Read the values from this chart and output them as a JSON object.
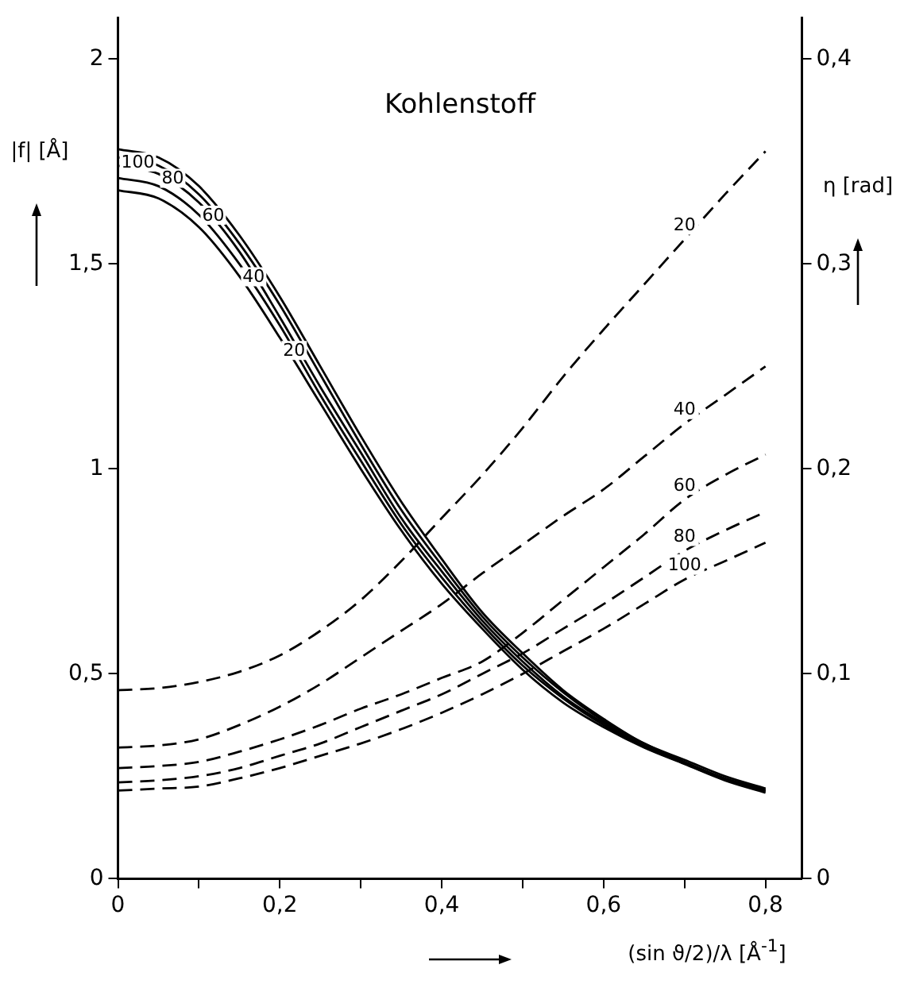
{
  "chart_data": {
    "type": "line",
    "title": "Kohlenstoff",
    "xlabel": "(sin ϑ/2)/λ [Å$^{-1}$]",
    "ylabel": "|f| [Å]",
    "y2label": "η [rad]",
    "x": [
      0,
      0.05,
      0.1,
      0.15,
      0.2,
      0.25,
      0.3,
      0.35,
      0.4,
      0.45,
      0.5,
      0.55,
      0.6,
      0.65,
      0.7,
      0.75,
      0.8
    ],
    "xlim": [
      0,
      0.845
    ],
    "xticks": [
      {
        "value": 0,
        "label": "0"
      },
      {
        "value": 0.1,
        "label": null
      },
      {
        "value": 0.2,
        "label": "0,2"
      },
      {
        "value": 0.3,
        "label": null
      },
      {
        "value": 0.4,
        "label": "0,4"
      },
      {
        "value": 0.5,
        "label": null
      },
      {
        "value": 0.6,
        "label": "0,6"
      },
      {
        "value": 0.7,
        "label": null
      },
      {
        "value": 0.8,
        "label": "0,8"
      }
    ],
    "ylim": [
      0,
      2.1
    ],
    "yticks": [
      0,
      {
        "value": 0.5,
        "label": "0,5"
      },
      1,
      {
        "value": 1.5,
        "label": "1,5"
      },
      2
    ],
    "y2lim": [
      0,
      0.42
    ],
    "y2ticks": [
      0,
      {
        "value": 0.1,
        "label": "0,1"
      },
      {
        "value": 0.2,
        "label": "0,2"
      },
      {
        "value": 0.3,
        "label": "0,3"
      },
      {
        "value": 0.4,
        "label": "0,4"
      }
    ],
    "grid": false,
    "legend": false,
    "marker": "none",
    "series": [
      {
        "name": "100",
        "color": "#000000",
        "line_style": "solid",
        "values": [
          1.78,
          1.76,
          1.69,
          1.57,
          1.42,
          1.25,
          1.08,
          0.92,
          0.78,
          0.65,
          0.55,
          0.46,
          0.39,
          0.33,
          0.29,
          0.25,
          0.22
        ]
      },
      {
        "name": "80",
        "color": "#000000",
        "line_style": "solid",
        "values": [
          1.76,
          1.74,
          1.67,
          1.55,
          1.4,
          1.23,
          1.06,
          0.9,
          0.765,
          0.64,
          0.54,
          0.455,
          0.385,
          0.33,
          0.285,
          0.245,
          0.218
        ]
      },
      {
        "name": "60",
        "color": "#000000",
        "line_style": "solid",
        "values": [
          1.74,
          1.72,
          1.65,
          1.53,
          1.37,
          1.2,
          1.04,
          0.88,
          0.75,
          0.63,
          0.53,
          0.445,
          0.38,
          0.325,
          0.283,
          0.243,
          0.215
        ]
      },
      {
        "name": "40",
        "color": "#000000",
        "line_style": "solid",
        "values": [
          1.71,
          1.69,
          1.62,
          1.5,
          1.35,
          1.18,
          1.02,
          0.865,
          0.735,
          0.62,
          0.52,
          0.44,
          0.375,
          0.322,
          0.281,
          0.242,
          0.213
        ]
      },
      {
        "name": "20",
        "color": "#000000",
        "line_style": "solid",
        "values": [
          1.68,
          1.66,
          1.59,
          1.47,
          1.32,
          1.16,
          1.0,
          0.85,
          0.72,
          0.61,
          0.51,
          0.43,
          0.37,
          0.32,
          0.28,
          0.24,
          0.21
        ]
      },
      {
        "name": "20",
        "color": "#000000",
        "line_style": "dashed",
        "axis": "y2",
        "values": [
          0.092,
          0.093,
          0.096,
          0.101,
          0.109,
          0.121,
          0.136,
          0.155,
          0.176,
          0.197,
          0.22,
          0.245,
          0.268,
          0.29,
          0.312,
          0.334,
          0.355
        ]
      },
      {
        "name": "40",
        "color": "#000000",
        "line_style": "dashed",
        "axis": "y2",
        "values": [
          0.064,
          0.065,
          0.068,
          0.075,
          0.084,
          0.095,
          0.108,
          0.121,
          0.134,
          0.149,
          0.163,
          0.177,
          0.19,
          0.206,
          0.222,
          0.236,
          0.25
        ]
      },
      {
        "name": "60",
        "color": "#000000",
        "line_style": "dashed",
        "axis": "y2",
        "values": [
          0.054,
          0.055,
          0.057,
          0.062,
          0.068,
          0.075,
          0.083,
          0.09,
          0.098,
          0.106,
          0.12,
          0.136,
          0.152,
          0.168,
          0.185,
          0.197,
          0.207
        ]
      },
      {
        "name": "80",
        "color": "#000000",
        "line_style": "dashed",
        "axis": "y2",
        "values": [
          0.047,
          0.048,
          0.05,
          0.054,
          0.06,
          0.066,
          0.074,
          0.082,
          0.09,
          0.1,
          0.11,
          0.122,
          0.134,
          0.147,
          0.16,
          0.17,
          0.179
        ]
      },
      {
        "name": "100",
        "color": "#000000",
        "line_style": "dashed",
        "axis": "y2",
        "values": [
          0.043,
          0.044,
          0.045,
          0.049,
          0.054,
          0.06,
          0.066,
          0.073,
          0.081,
          0.09,
          0.1,
          0.111,
          0.122,
          0.134,
          0.146,
          0.155,
          0.164
        ]
      }
    ]
  }
}
